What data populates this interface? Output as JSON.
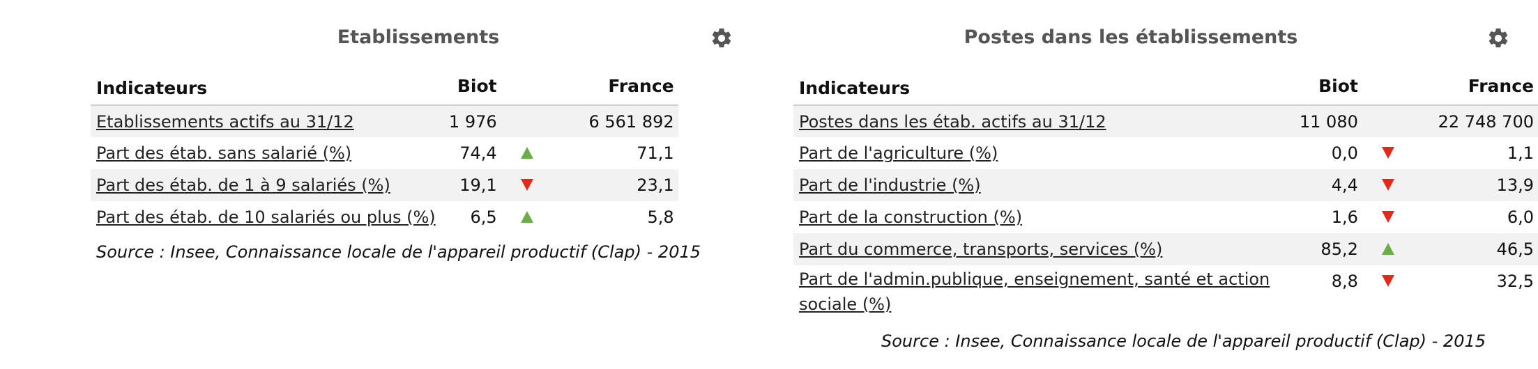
{
  "left": {
    "title": "Etablissements",
    "headers": {
      "indicator": "Indicateurs",
      "local": "Biot",
      "ref": "France"
    },
    "rows": [
      {
        "label": "Etablissements actifs au 31/12",
        "local": "1 976",
        "trend": "",
        "ref": "6 561 892"
      },
      {
        "label": "Part des étab. sans salarié (%)",
        "local": "74,4",
        "trend": "up",
        "ref": "71,1"
      },
      {
        "label": "Part des étab. de 1 à 9 salariés (%)",
        "local": "19,1",
        "trend": "down",
        "ref": "23,1"
      },
      {
        "label": "Part des étab. de 10 salariés ou plus (%)",
        "local": "6,5",
        "trend": "up",
        "ref": "5,8"
      }
    ],
    "source": "Source : Insee, Connaissance locale de l'appareil productif (Clap) - 2015",
    "icon": "gear-icon"
  },
  "right": {
    "title": "Postes dans les établissements",
    "headers": {
      "indicator": "Indicateurs",
      "local": "Biot",
      "ref": "France"
    },
    "rows": [
      {
        "label": "Postes dans les étab. actifs au 31/12",
        "local": "11 080",
        "trend": "",
        "ref": "22 748 700"
      },
      {
        "label": "Part de l'agriculture (%)",
        "local": "0,0",
        "trend": "down",
        "ref": "1,1"
      },
      {
        "label": "Part de l'industrie (%)",
        "local": "4,4",
        "trend": "down",
        "ref": "13,9"
      },
      {
        "label": "Part de la construction (%)",
        "local": "1,6",
        "trend": "down",
        "ref": "6,0"
      },
      {
        "label": "Part du commerce, transports, services (%)",
        "local": "85,2",
        "trend": "up",
        "ref": "46,5"
      },
      {
        "label": "Part de l'admin.publique, enseignement, santé et action sociale (%)",
        "local": "8,8",
        "trend": "down",
        "ref": "32,5"
      }
    ],
    "source": "Source : Insee, Connaissance locale de l'appareil productif (Clap) - 2015",
    "icon": "gear-icon"
  },
  "colors": {
    "up": "#6aaf45",
    "down": "#e22a1c",
    "title": "#555555",
    "shade": "#f2f2f2"
  }
}
